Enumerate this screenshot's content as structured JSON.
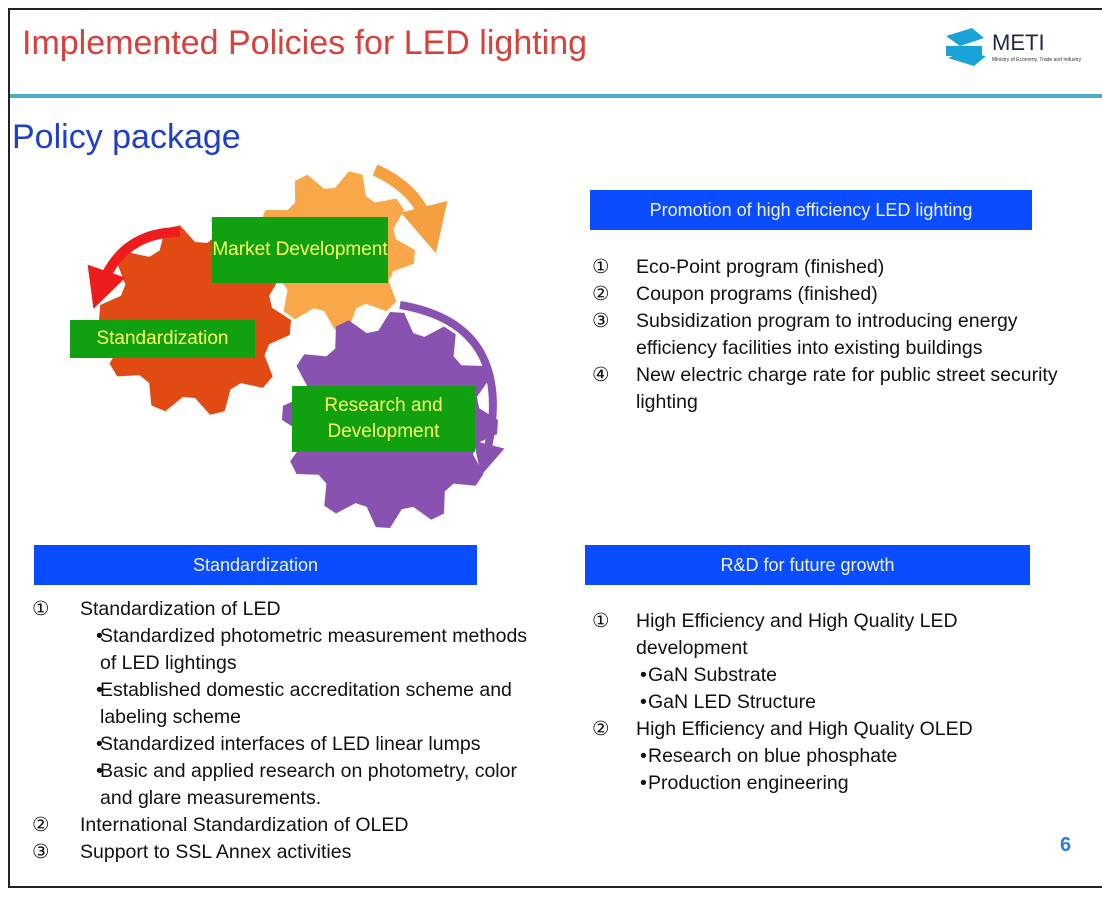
{
  "header": {
    "title": "Implemented Policies for LED lighting",
    "logo": {
      "name": "METI",
      "subtitle": "Ministry of Economy, Trade and Industry"
    }
  },
  "subtitle": "Policy package",
  "diagram": {
    "labels": [
      "Market Development",
      "Standardization",
      "Research and Development"
    ]
  },
  "sections": [
    {
      "heading": "Promotion of high efficiency LED lighting",
      "items": [
        {
          "marker": "①",
          "text": "Eco-Point program (finished)"
        },
        {
          "marker": "②",
          "text": "Coupon programs (finished)"
        },
        {
          "marker": "③",
          "text": "Subsidization program to introducing energy efficiency facilities into existing buildings"
        },
        {
          "marker": "④",
          "text": "New electric charge rate for public street security lighting"
        }
      ]
    },
    {
      "heading": "Standardization",
      "items": [
        {
          "marker": "①",
          "text": "Standardization of LED",
          "subitems": [
            "Standardized photometric measurement methods of LED lightings",
            "Established domestic accreditation scheme and labeling scheme",
            "Standardized interfaces of LED linear lumps",
            "Basic and applied research on photometry, color and glare measurements."
          ]
        },
        {
          "marker": "②",
          "text": "International Standardization of OLED"
        },
        {
          "marker": "③",
          "text": "Support to SSL Annex activities"
        }
      ]
    },
    {
      "heading": "R&D for future growth",
      "items": [
        {
          "marker": "①",
          "text": "High Efficiency and High Quality LED development",
          "subitems": [
            "GaN Substrate",
            "GaN LED Structure"
          ]
        },
        {
          "marker": "②",
          "text": "High Efficiency and High Quality OLED",
          "subitems": [
            "Research on blue phosphate",
            "Production engineering"
          ]
        }
      ]
    }
  ],
  "page_number": "6"
}
